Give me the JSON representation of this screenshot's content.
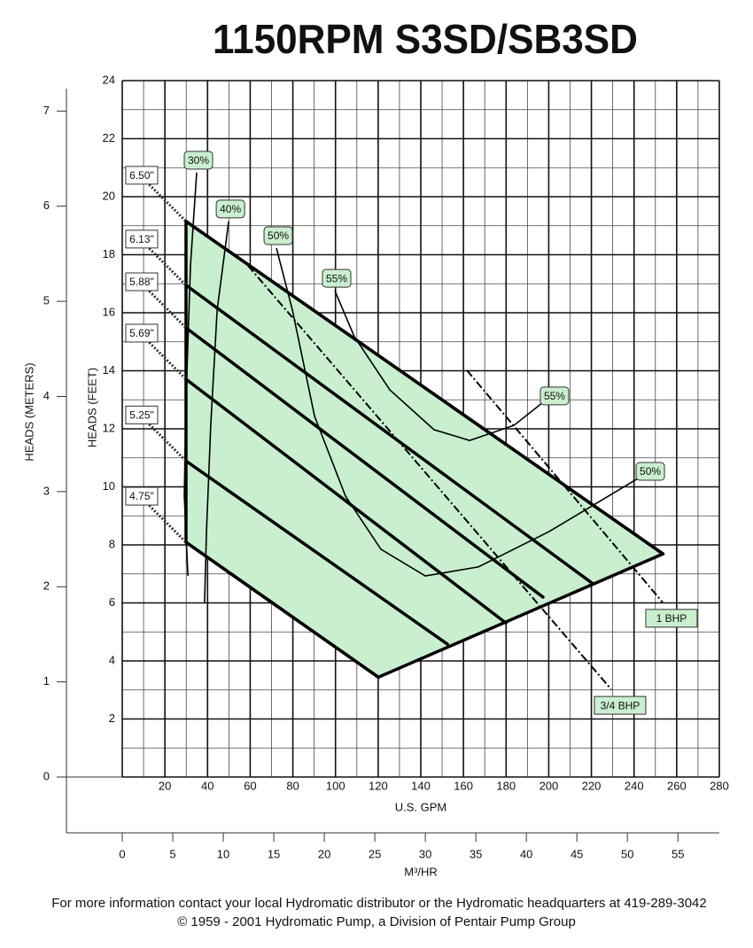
{
  "chart_data": {
    "type": "line",
    "title": "1150RPM S3SD/SB3SD",
    "xlabel": "U.S. GPM",
    "ylabel": "HEADS (FEET)",
    "y2label": "HEADS (METERS)",
    "x2label": "M³/HR",
    "xlim": [
      0,
      280
    ],
    "xticks": [
      20,
      40,
      60,
      80,
      100,
      120,
      140,
      160,
      180,
      200,
      220,
      240,
      260,
      280
    ],
    "ylim": [
      0,
      24
    ],
    "yticks": [
      2,
      4,
      6,
      8,
      10,
      12,
      14,
      16,
      18,
      20,
      22,
      24
    ],
    "y2lim": [
      0,
      7.32
    ],
    "y2ticks": [
      0,
      1,
      2,
      3,
      4,
      5,
      6,
      7
    ],
    "x2lim": [
      0,
      59.1
    ],
    "x2ticks": [
      0,
      5,
      10,
      15,
      20,
      25,
      30,
      35,
      40,
      45,
      50,
      55
    ],
    "grid": true,
    "envelope": {
      "color": "#c9efcf",
      "x": [
        29.9,
        29.9,
        253.6,
        120.1
      ],
      "y": [
        8.09,
        19.15,
        7.69,
        3.44
      ]
    },
    "impellers": [
      {
        "name": "6.50\"",
        "color": "#000000",
        "x": [
          29.9,
          253.6
        ],
        "y": [
          19.15,
          7.69
        ]
      },
      {
        "name": "6.13\"",
        "color": "#000000",
        "x": [
          29.9,
          220.2
        ],
        "y": [
          16.95,
          6.69
        ]
      },
      {
        "name": "5.88\"",
        "color": "#000000",
        "x": [
          29.9,
          197.3
        ],
        "y": [
          15.48,
          6.2
        ]
      },
      {
        "name": "5.69\"",
        "color": "#000000",
        "x": [
          29.9,
          179.9
        ],
        "y": [
          13.71,
          5.31
        ]
      },
      {
        "name": "5.25\"",
        "color": "#000000",
        "x": [
          29.9,
          152.5
        ],
        "y": [
          10.89,
          4.58
        ]
      },
      {
        "name": "4.75\"",
        "color": "#000000",
        "x": [
          29.9,
          120.1
        ],
        "y": [
          8.09,
          3.44
        ]
      }
    ],
    "efficiency": [
      {
        "name": "30%",
        "color": "#000000",
        "x": [
          34.9,
          32.0,
          29.9,
          29.1,
          30.8
        ],
        "y": [
          20.83,
          17.63,
          13.04,
          9.68,
          6.93
        ]
      },
      {
        "name": "40%",
        "color": "#000000",
        "x": [
          49.9,
          44.5,
          41.5,
          39.5,
          38.6
        ],
        "y": [
          19.15,
          16.09,
          12.12,
          8.46,
          6.02
        ]
      },
      {
        "name": "50%",
        "color": "#000000",
        "x": [
          72.3,
          79.8,
          90.2,
          104.7,
          121.3,
          142.1,
          167.0,
          200.2,
          241.8
        ],
        "y": [
          18.23,
          16.09,
          12.43,
          9.68,
          7.85,
          6.93,
          7.24,
          8.46,
          10.29
        ]
      },
      {
        "name": "55%",
        "color": "#000000",
        "x": [
          99.7,
          108.8,
          125.5,
          146.2,
          162.9,
          183.7,
          196.9
        ],
        "y": [
          16.76,
          15.18,
          13.34,
          11.97,
          11.6,
          12.12,
          12.89
        ]
      }
    ],
    "bhp": [
      {
        "name": "3/4 BHP",
        "color": "#000000",
        "x": [
          59.0,
          229.3
        ],
        "y": [
          17.62,
          3.02
        ]
      },
      {
        "name": "1 BHP",
        "color": "#000000",
        "x": [
          161.6,
          253.4
        ],
        "y": [
          14.02,
          6.02
        ]
      }
    ],
    "label_color": "#c9efcf",
    "footer": [
      "For more information contact your local Hydromatic distributor or the Hydromatic headquarters at 419-289-3042",
      "© 1959 - 2001 Hydromatic Pump, a Division of Pentair Pump Group"
    ]
  }
}
